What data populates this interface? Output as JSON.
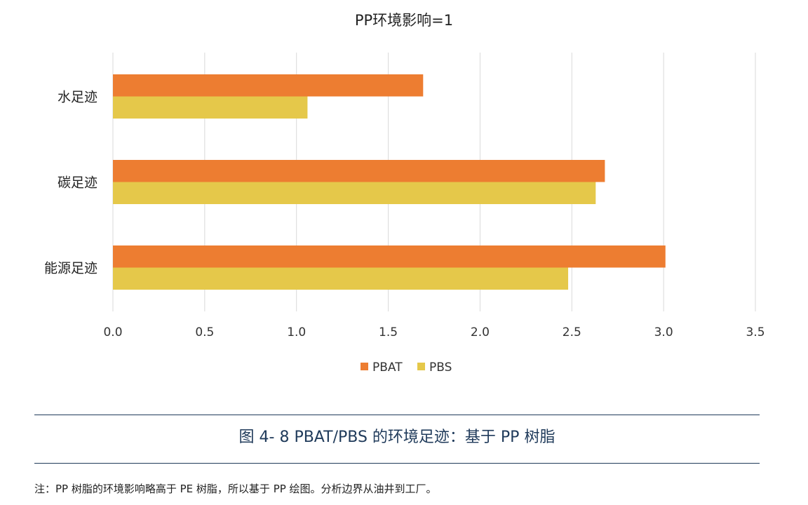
{
  "chart_data": {
    "type": "bar",
    "orientation": "horizontal",
    "title": "PP环境影响=1",
    "categories": [
      "水足迹",
      "碳足迹",
      "能源足迹"
    ],
    "series": [
      {
        "name": "PBAT",
        "color": "#ED7D31",
        "values": [
          1.69,
          2.68,
          3.01
        ]
      },
      {
        "name": "PBS",
        "color": "#E5C84A",
        "values": [
          1.06,
          2.63,
          2.48
        ]
      }
    ],
    "xlim": [
      0,
      3.5
    ],
    "x_ticks": [
      "0.0",
      "0.5",
      "1.0",
      "1.5",
      "2.0",
      "2.5",
      "3.0",
      "3.5"
    ],
    "grid": "vertical",
    "legend_position": "bottom"
  },
  "caption": "图 4- 8 PBAT/PBS 的环境足迹：基于 PP 树脂",
  "note": "注：PP 树脂的环境影响略高于 PE 树脂，所以基于 PP 绘图。分析边界从油井到工厂。"
}
